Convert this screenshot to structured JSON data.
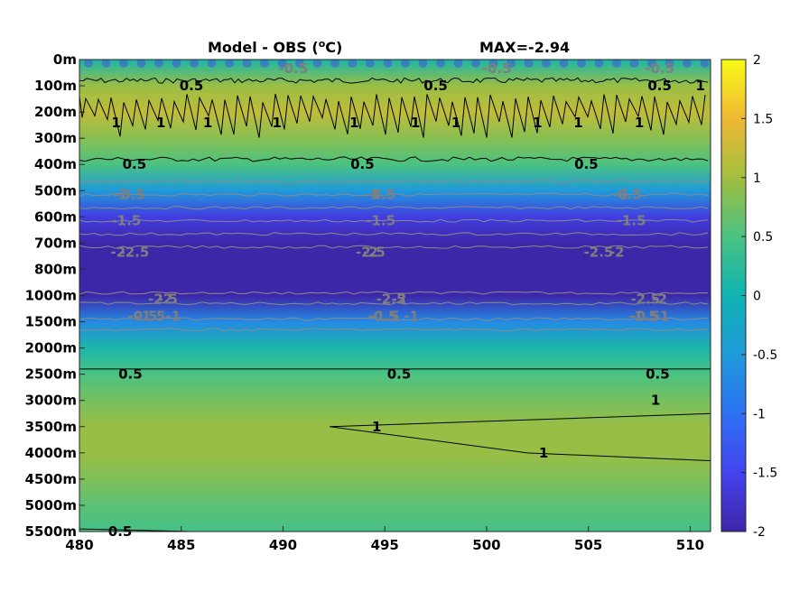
{
  "title": "Model - OBS (°C)",
  "title_parts": {
    "pre": "Model - OBS (",
    "sup": "o",
    "post": "C)"
  },
  "max_label": "MAX=-2.94",
  "chart_data": {
    "type": "heatmap",
    "title": "Model - OBS (°C)",
    "annotation": "MAX=-2.94",
    "x_range": [
      480,
      511
    ],
    "x_ticks": [
      480,
      485,
      490,
      495,
      500,
      505,
      510
    ],
    "y_ticks": [
      "0m",
      "100m",
      "200m",
      "300m",
      "400m",
      "500m",
      "600m",
      "700m",
      "800m",
      "1000m",
      "1500m",
      "2000m",
      "2500m",
      "3000m",
      "3500m",
      "4000m",
      "4500m",
      "5000m",
      "5500m"
    ],
    "y_reversed": true,
    "colormap": "parula",
    "clim": [
      -2,
      2
    ],
    "colorbar_ticks": [
      "2",
      "1.5",
      "1",
      "0.5",
      "0",
      "-0.5",
      "-1",
      "-1.5",
      "-2"
    ],
    "layer_profile": [
      {
        "depth": "0m",
        "value": 0.1
      },
      {
        "depth": "100m",
        "value": 0.95
      },
      {
        "depth": "200m",
        "value": 1.2
      },
      {
        "depth": "300m",
        "value": 0.85
      },
      {
        "depth": "400m",
        "value": 0.5
      },
      {
        "depth": "500m",
        "value": -0.5
      },
      {
        "depth": "600m",
        "value": -1.6
      },
      {
        "depth": "700m",
        "value": -2.5
      },
      {
        "depth": "800m",
        "value": -2.9
      },
      {
        "depth": "1000m",
        "value": -2.6
      },
      {
        "depth": "1500m",
        "value": -0.7
      },
      {
        "depth": "2000m",
        "value": 0.1
      },
      {
        "depth": "2500m",
        "value": 0.5
      },
      {
        "depth": "3000m",
        "value": 0.75
      },
      {
        "depth": "3500m",
        "value": 0.95
      },
      {
        "depth": "4000m",
        "value": 0.95
      },
      {
        "depth": "4500m",
        "value": 0.8
      },
      {
        "depth": "5000m",
        "value": 0.6
      },
      {
        "depth": "5500m",
        "value": 0.45
      }
    ],
    "contour_labels": [
      {
        "text": "0.5",
        "x": 485.5,
        "depth": "100m",
        "style": "dark"
      },
      {
        "text": "0.5",
        "x": 497.5,
        "depth": "100m",
        "style": "dark"
      },
      {
        "text": "0.5",
        "x": 508.5,
        "depth": "100m",
        "style": "dark"
      },
      {
        "text": "-0.5",
        "x": 490.5,
        "depth": "0m",
        "style": "grey"
      },
      {
        "text": "-0.5",
        "x": 500.5,
        "depth": "0m",
        "style": "grey"
      },
      {
        "text": "-0.5",
        "x": 508.5,
        "depth": "0m",
        "style": "grey"
      },
      {
        "text": "1",
        "x": 481.8,
        "depth": "200m",
        "style": "dark"
      },
      {
        "text": "1",
        "x": 484,
        "depth": "200m",
        "style": "dark"
      },
      {
        "text": "1",
        "x": 486.3,
        "depth": "200m",
        "style": "dark"
      },
      {
        "text": "1",
        "x": 489.7,
        "depth": "200m",
        "style": "dark"
      },
      {
        "text": "1",
        "x": 493.5,
        "depth": "200m",
        "style": "dark"
      },
      {
        "text": "1",
        "x": 496.5,
        "depth": "200m",
        "style": "dark"
      },
      {
        "text": "1",
        "x": 498.5,
        "depth": "200m",
        "style": "dark"
      },
      {
        "text": "1",
        "x": 502.5,
        "depth": "200m",
        "style": "dark"
      },
      {
        "text": "1",
        "x": 504.5,
        "depth": "200m",
        "style": "dark"
      },
      {
        "text": "1",
        "x": 507.5,
        "depth": "200m",
        "style": "dark"
      },
      {
        "text": "1",
        "x": 510.5,
        "depth": "100m",
        "style": "dark"
      },
      {
        "text": "0.5",
        "x": 482.7,
        "depth": "400m",
        "style": "dark"
      },
      {
        "text": "0.5",
        "x": 493.9,
        "depth": "400m",
        "style": "dark"
      },
      {
        "text": "0.5",
        "x": 504.9,
        "depth": "400m",
        "style": "dark"
      },
      {
        "text": "-0.5",
        "x": 482.5,
        "depth": "500m",
        "style": "grey"
      },
      {
        "text": "-1",
        "x": 482,
        "depth": "500m",
        "style": "grey"
      },
      {
        "text": "-1.5",
        "x": 482.3,
        "depth": "600m",
        "style": "grey"
      },
      {
        "text": "-2",
        "x": 481.9,
        "depth": "700m",
        "style": "grey"
      },
      {
        "text": "-2.5",
        "x": 482.7,
        "depth": "700m",
        "style": "grey"
      },
      {
        "text": "-0.5",
        "x": 494.8,
        "depth": "500m",
        "style": "grey"
      },
      {
        "text": "-1",
        "x": 494.4,
        "depth": "500m",
        "style": "grey"
      },
      {
        "text": "-1.5",
        "x": 494.8,
        "depth": "600m",
        "style": "grey"
      },
      {
        "text": "-2",
        "x": 494.3,
        "depth": "700m",
        "style": "grey"
      },
      {
        "text": "-2.5",
        "x": 494.3,
        "depth": "700m",
        "style": "grey"
      },
      {
        "text": "-0.5",
        "x": 506.9,
        "depth": "500m",
        "style": "grey"
      },
      {
        "text": "-1",
        "x": 506.6,
        "depth": "500m",
        "style": "grey"
      },
      {
        "text": "-1.5",
        "x": 507.1,
        "depth": "600m",
        "style": "grey"
      },
      {
        "text": "-2",
        "x": 506.4,
        "depth": "700m",
        "style": "grey"
      },
      {
        "text": "-2.5",
        "x": 505.5,
        "depth": "700m",
        "style": "grey"
      },
      {
        "text": "-2.5",
        "x": 484.1,
        "depth": "1000m",
        "style": "grey"
      },
      {
        "text": "-2",
        "x": 484.2,
        "depth": "1000m",
        "style": "grey"
      },
      {
        "text": "-1.5",
        "x": 483.5,
        "depth": "1500m",
        "style": "grey"
      },
      {
        "text": "-1",
        "x": 484.6,
        "depth": "1500m",
        "style": "grey"
      },
      {
        "text": "-0.5",
        "x": 483.1,
        "depth": "1500m",
        "style": "grey"
      },
      {
        "text": "-2.5",
        "x": 495.3,
        "depth": "1000m",
        "style": "grey"
      },
      {
        "text": "-2",
        "x": 495.7,
        "depth": "1000m",
        "style": "grey"
      },
      {
        "text": "-1.5",
        "x": 495,
        "depth": "1500m",
        "style": "grey"
      },
      {
        "text": "-1",
        "x": 496.3,
        "depth": "1500m",
        "style": "grey"
      },
      {
        "text": "-0.5",
        "x": 494.9,
        "depth": "1500m",
        "style": "grey"
      },
      {
        "text": "-2.5",
        "x": 507.8,
        "depth": "1000m",
        "style": "grey"
      },
      {
        "text": "-2",
        "x": 508.5,
        "depth": "1000m",
        "style": "grey"
      },
      {
        "text": "-1.5",
        "x": 507.7,
        "depth": "1500m",
        "style": "grey"
      },
      {
        "text": "-1",
        "x": 508.6,
        "depth": "1500m",
        "style": "grey"
      },
      {
        "text": "-0.5",
        "x": 507.8,
        "depth": "1500m",
        "style": "grey"
      },
      {
        "text": "0.5",
        "x": 482.5,
        "depth": "2500m",
        "style": "dark"
      },
      {
        "text": "0.5",
        "x": 495.7,
        "depth": "2500m",
        "style": "dark"
      },
      {
        "text": "0.5",
        "x": 508.4,
        "depth": "2500m",
        "style": "dark"
      },
      {
        "text": "1",
        "x": 494.6,
        "depth": "3500m",
        "style": "dark"
      },
      {
        "text": "1",
        "x": 508.3,
        "depth": "3000m",
        "style": "dark"
      },
      {
        "text": "1",
        "x": 502.8,
        "depth": "4000m",
        "style": "dark"
      },
      {
        "text": "0.5",
        "x": 482,
        "depth": "5500m",
        "style": "dark"
      }
    ]
  }
}
